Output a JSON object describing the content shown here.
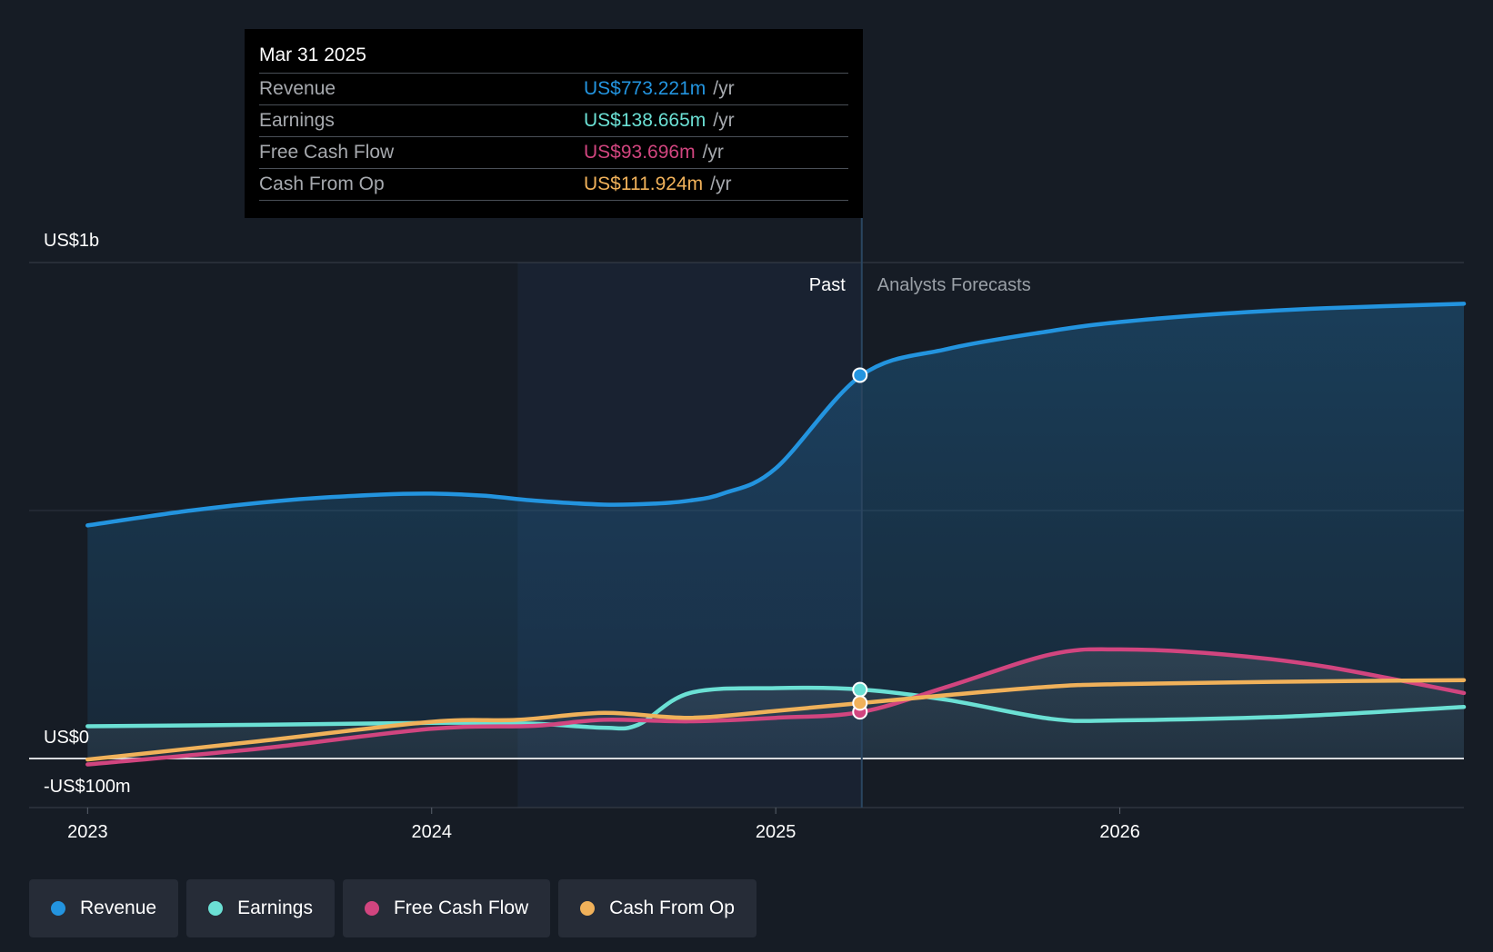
{
  "chart_data": {
    "type": "line",
    "y_axis": {
      "top_label": "US$1b",
      "zero_label": "US$0",
      "bottom_label": "-US$100m",
      "ylim": [
        -100,
        1000
      ]
    },
    "x_ticks": [
      "2023",
      "2024",
      "2025",
      "2026"
    ],
    "x_tick_values": [
      2023.0,
      2024.0,
      2025.0,
      2026.0
    ],
    "xlim": [
      2022.83,
      2027.0
    ],
    "past_range": [
      2024.25,
      2025.25
    ],
    "divider_x": 2025.25,
    "regions": {
      "past": "Past",
      "forecast": "Analysts Forecasts"
    },
    "series": [
      {
        "name": "Revenue",
        "color": "#2394df",
        "fill": true,
        "points": [
          [
            2023.0,
            470
          ],
          [
            2023.3,
            500
          ],
          [
            2023.6,
            522
          ],
          [
            2023.85,
            532
          ],
          [
            2024.0,
            534
          ],
          [
            2024.15,
            530
          ],
          [
            2024.3,
            520
          ],
          [
            2024.5,
            512
          ],
          [
            2024.65,
            514
          ],
          [
            2024.75,
            520
          ],
          [
            2024.85,
            535
          ],
          [
            2025.0,
            585
          ],
          [
            2025.25,
            773
          ],
          [
            2025.5,
            826
          ],
          [
            2025.8,
            862
          ],
          [
            2026.0,
            880
          ],
          [
            2026.3,
            897
          ],
          [
            2026.6,
            908
          ],
          [
            2027.0,
            917
          ]
        ]
      },
      {
        "name": "Earnings",
        "color": "#6be0d4",
        "fill": false,
        "points": [
          [
            2023.0,
            65
          ],
          [
            2023.5,
            68
          ],
          [
            2024.0,
            72
          ],
          [
            2024.3,
            70
          ],
          [
            2024.5,
            62
          ],
          [
            2024.6,
            68
          ],
          [
            2024.75,
            132
          ],
          [
            2025.0,
            142
          ],
          [
            2025.25,
            139
          ],
          [
            2025.5,
            118
          ],
          [
            2025.8,
            80
          ],
          [
            2026.0,
            77
          ],
          [
            2026.5,
            85
          ],
          [
            2027.0,
            104
          ]
        ]
      },
      {
        "name": "Free Cash Flow",
        "color": "#d1457f",
        "fill": false,
        "points": [
          [
            2023.0,
            -12
          ],
          [
            2023.5,
            20
          ],
          [
            2024.0,
            60
          ],
          [
            2024.3,
            66
          ],
          [
            2024.5,
            78
          ],
          [
            2024.75,
            75
          ],
          [
            2025.0,
            82
          ],
          [
            2025.25,
            94
          ],
          [
            2025.5,
            145
          ],
          [
            2025.8,
            210
          ],
          [
            2026.0,
            220
          ],
          [
            2026.3,
            210
          ],
          [
            2026.6,
            185
          ],
          [
            2027.0,
            132
          ]
        ]
      },
      {
        "name": "Cash From Op",
        "color": "#f0b15a",
        "fill": false,
        "points": [
          [
            2023.0,
            -2
          ],
          [
            2023.5,
            35
          ],
          [
            2024.0,
            74
          ],
          [
            2024.25,
            78
          ],
          [
            2024.5,
            92
          ],
          [
            2024.75,
            82
          ],
          [
            2025.0,
            96
          ],
          [
            2025.25,
            112
          ],
          [
            2025.5,
            128
          ],
          [
            2025.8,
            145
          ],
          [
            2026.0,
            150
          ],
          [
            2026.5,
            155
          ],
          [
            2027.0,
            158
          ]
        ]
      }
    ]
  },
  "tooltip": {
    "date": "Mar 31 2025",
    "rows": [
      {
        "name": "Revenue",
        "value": "US$773.221m",
        "unit": "/yr",
        "color": "#2394df"
      },
      {
        "name": "Earnings",
        "value": "US$138.665m",
        "unit": "/yr",
        "color": "#6be0d4"
      },
      {
        "name": "Free Cash Flow",
        "value": "US$93.696m",
        "unit": "/yr",
        "color": "#d1457f"
      },
      {
        "name": "Cash From Op",
        "value": "US$111.924m",
        "unit": "/yr",
        "color": "#f0b15a"
      }
    ]
  },
  "legend": [
    {
      "label": "Revenue",
      "color": "#2394df"
    },
    {
      "label": "Earnings",
      "color": "#6be0d4"
    },
    {
      "label": "Free Cash Flow",
      "color": "#d1457f"
    },
    {
      "label": "Cash From Op",
      "color": "#f0b15a"
    }
  ]
}
